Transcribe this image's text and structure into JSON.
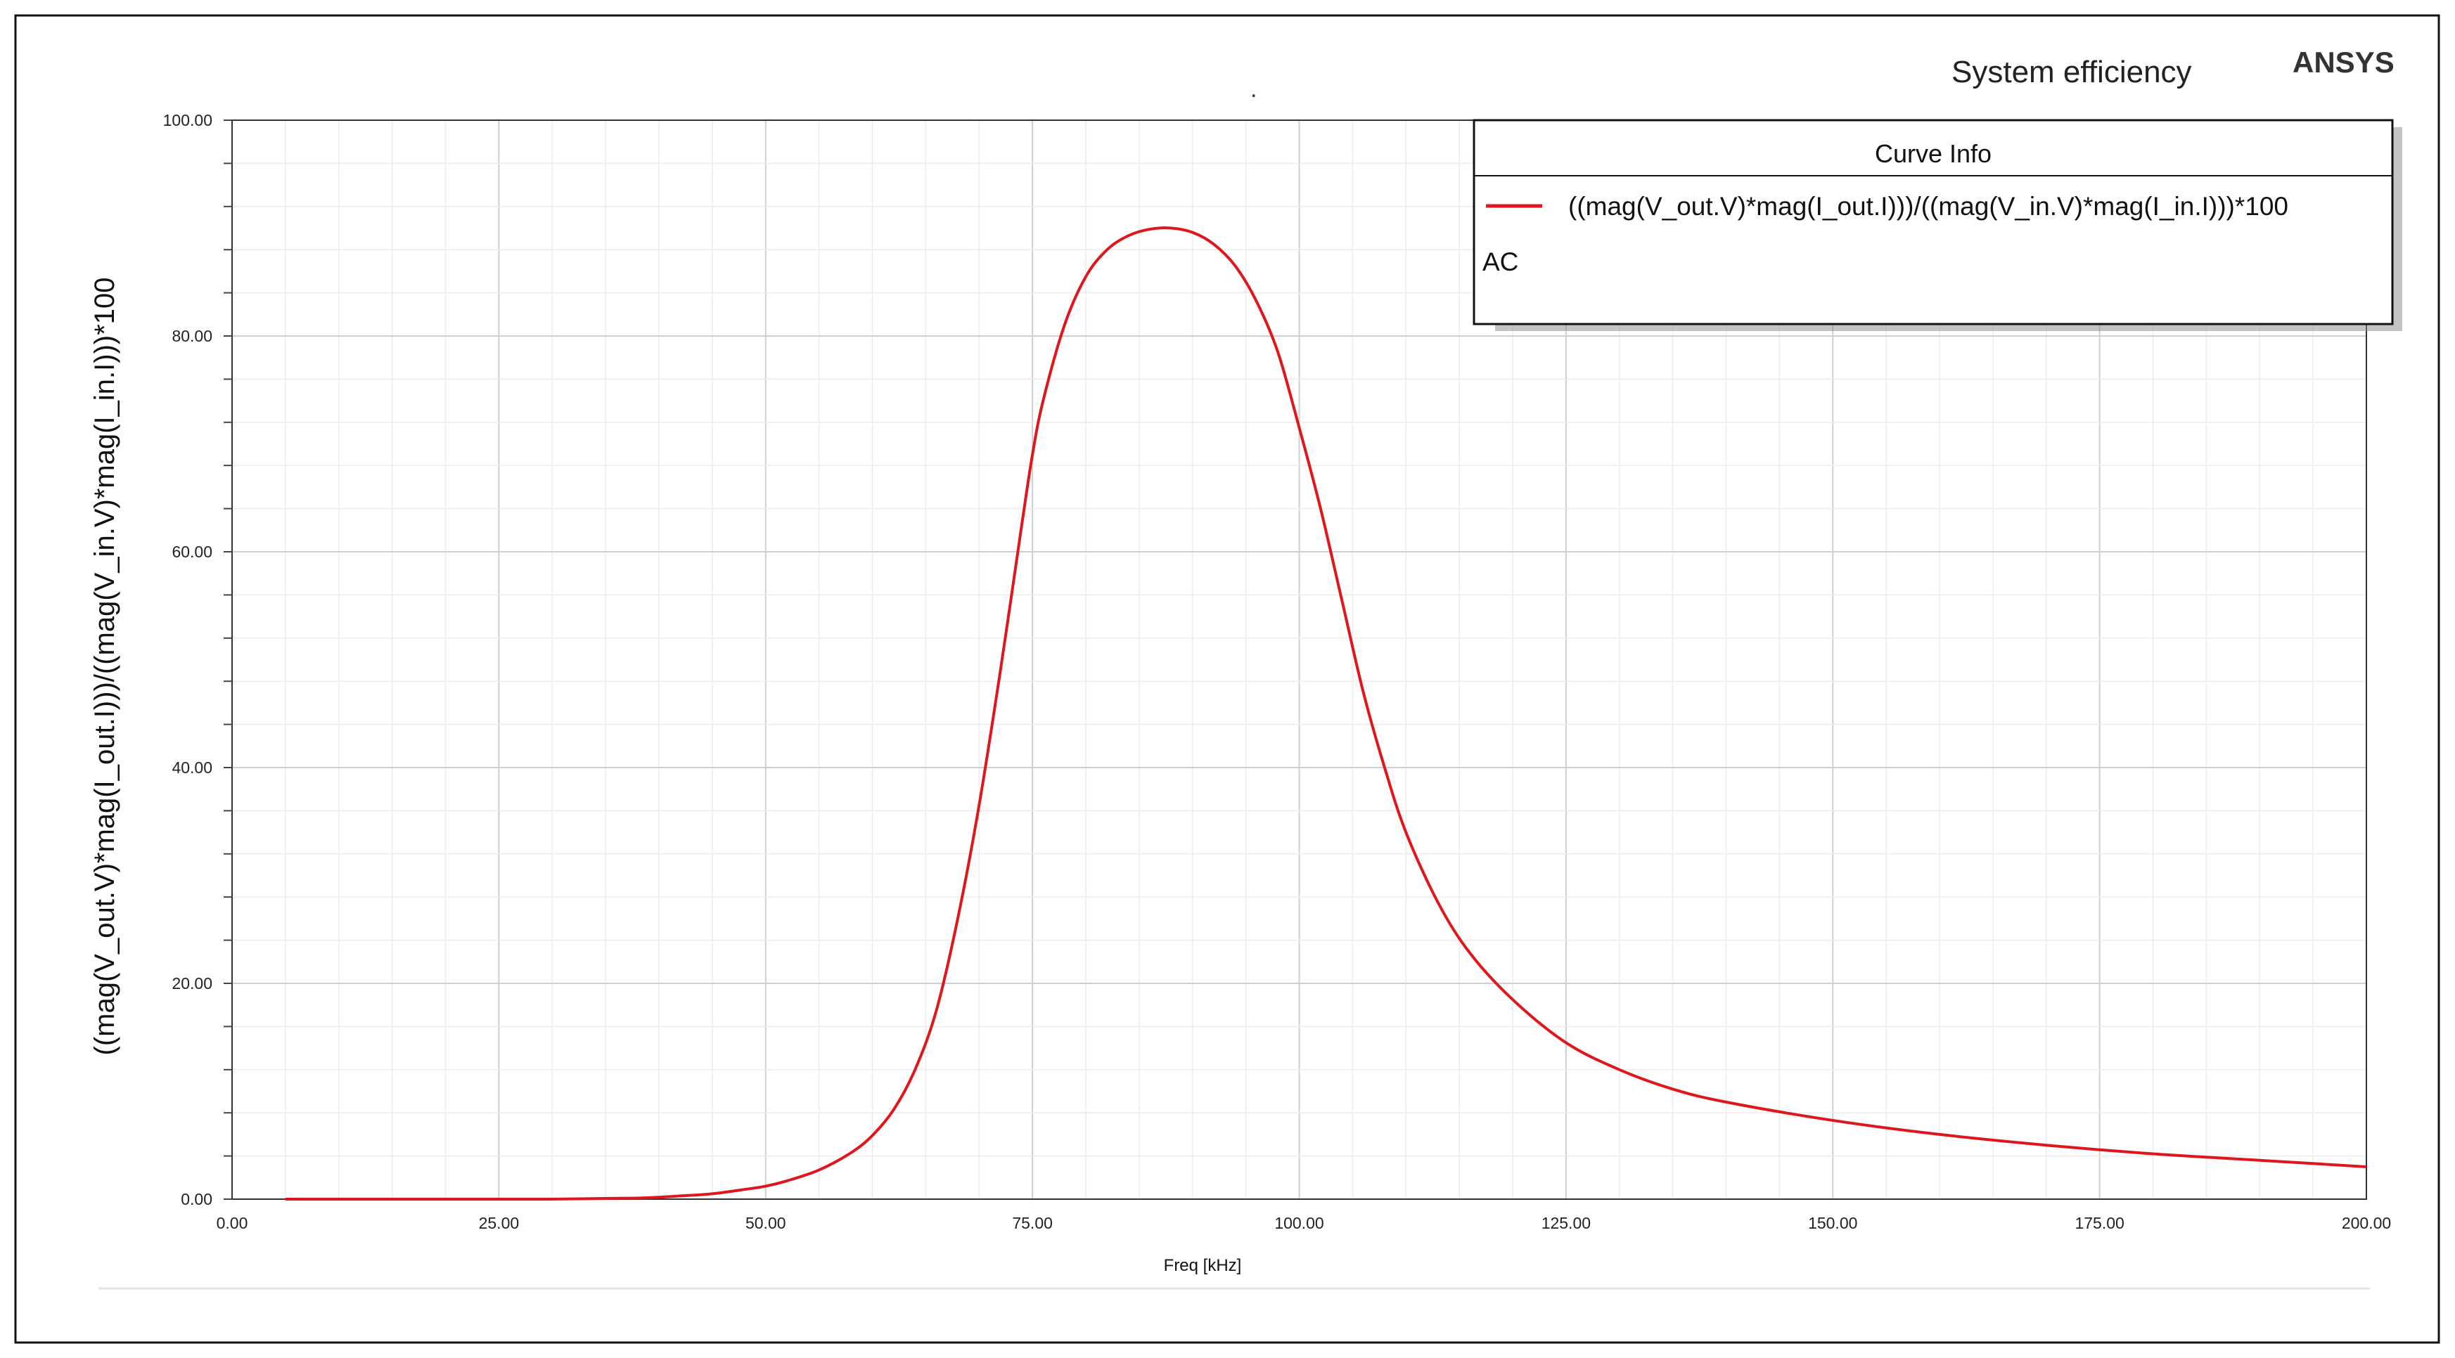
{
  "chart_data": {
    "type": "line",
    "title": "System efficiency",
    "brand": "ANSYS",
    "corner_mark": ".",
    "xlabel": "Freq [kHz]",
    "ylabel": "((mag(V_out.V)*mag(I_out.I)))/((mag(V_in.V)*mag(I_in.I)))*100",
    "xlim": [
      0,
      200
    ],
    "ylim": [
      0,
      100
    ],
    "x_ticks": [
      "0.00",
      "25.00",
      "50.00",
      "75.00",
      "100.00",
      "125.00",
      "150.00",
      "175.00",
      "200.00"
    ],
    "y_ticks": [
      "0.00",
      "20.00",
      "40.00",
      "60.00",
      "80.00",
      "100.00"
    ],
    "grid": true,
    "legend": {
      "title": "Curve Info",
      "placement": "top-right",
      "entries": [
        {
          "name": "((mag(V_out.V)*mag(I_out.I)))/((mag(V_in.V)*mag(I_in.I)))*100",
          "sub": "AC",
          "color": "#e0161d"
        }
      ]
    },
    "series": [
      {
        "name": "((mag(V_out.V)*mag(I_out.I)))/((mag(V_in.V)*mag(I_in.I)))*100",
        "color": "#e0161d",
        "x": [
          5,
          10,
          20,
          30,
          38,
          42,
          45,
          48,
          50,
          52,
          55,
          58,
          60,
          62,
          64,
          66,
          68,
          70,
          72,
          74,
          75,
          76,
          78,
          80,
          82,
          84,
          86,
          88,
          90,
          92,
          94,
          96,
          98,
          100,
          102,
          104,
          106,
          108,
          110,
          113,
          116,
          120,
          125,
          130,
          135,
          140,
          150,
          160,
          170,
          180,
          190,
          200
        ],
        "y": [
          0,
          0,
          0,
          0,
          0.1,
          0.3,
          0.5,
          0.9,
          1.2,
          1.7,
          2.7,
          4.3,
          5.9,
          8.3,
          12,
          17.5,
          26,
          36.5,
          49,
          62.5,
          69,
          74,
          81,
          85.5,
          88,
          89.3,
          89.9,
          90,
          89.6,
          88.5,
          86.5,
          83.2,
          78.5,
          71.5,
          64,
          55.5,
          47,
          40,
          34,
          27.5,
          22.8,
          18.5,
          14.5,
          12,
          10.2,
          9,
          7.3,
          6,
          5,
          4.2,
          3.6,
          3
        ]
      }
    ]
  }
}
